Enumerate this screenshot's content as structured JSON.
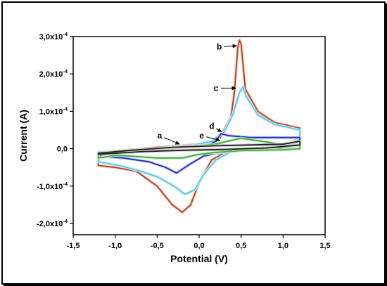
{
  "chart_data": {
    "type": "line",
    "title": "",
    "xlabel": "Potential (V)",
    "ylabel": "Current (A)",
    "xlim": [
      -1.5,
      1.5
    ],
    "ylim": [
      -0.00023,
      0.0003
    ],
    "xticks": [
      {
        "value": -1.5,
        "label": "-1,5"
      },
      {
        "value": -1.0,
        "label": "-1,0"
      },
      {
        "value": -0.5,
        "label": "-0,5"
      },
      {
        "value": 0.0,
        "label": "0,0"
      },
      {
        "value": 0.5,
        "label": "0,5"
      },
      {
        "value": 1.0,
        "label": "1,0"
      },
      {
        "value": 1.5,
        "label": "1,5"
      }
    ],
    "yticks": [
      {
        "value": -0.0002,
        "mantissa": "-2,0x10",
        "exp": "-4"
      },
      {
        "value": -0.0001,
        "mantissa": "-1,0x10",
        "exp": "-4"
      },
      {
        "value": 0.0,
        "mantissa": "0,0",
        "exp": ""
      },
      {
        "value": 0.0001,
        "mantissa": "1,0x10",
        "exp": "-4"
      },
      {
        "value": 0.0002,
        "mantissa": "2,0x10",
        "exp": "-4"
      },
      {
        "value": 0.0003,
        "mantissa": "3,0x10",
        "exp": "-4"
      }
    ],
    "grid": false,
    "series": [
      {
        "color": "#b5452a",
        "glow": "#f2c6b8",
        "points": [
          [
            -1.2,
            -1.5e-05
          ],
          [
            -0.9,
            -5e-06
          ],
          [
            -0.5,
            3.5e-06
          ],
          [
            -0.2,
            8e-06
          ],
          [
            0.1,
            1.5e-05
          ],
          [
            0.25,
            3e-05
          ],
          [
            0.32,
            6e-05
          ],
          [
            0.38,
            8.5e-05
          ],
          [
            0.42,
            0.00015
          ],
          [
            0.46,
            0.00027
          ],
          [
            0.48,
            0.00029
          ],
          [
            0.5,
            0.00028
          ],
          [
            0.55,
            0.00016
          ],
          [
            0.7,
            0.0001
          ],
          [
            0.9,
            7e-05
          ],
          [
            1.1,
            6e-05
          ],
          [
            1.2,
            5.5e-05
          ],
          [
            1.2,
            3e-05
          ],
          [
            1.05,
            1e-05
          ],
          [
            0.7,
            0
          ],
          [
            0.35,
            -5e-06
          ],
          [
            0.15,
            -3e-05
          ],
          [
            0.0,
            -9e-05
          ],
          [
            -0.1,
            -0.00015
          ],
          [
            -0.2,
            -0.00017
          ],
          [
            -0.32,
            -0.00015
          ],
          [
            -0.5,
            -0.0001
          ],
          [
            -0.75,
            -6e-05
          ],
          [
            -1.0,
            -5e-05
          ],
          [
            -1.2,
            -4.5e-05
          ]
        ]
      },
      {
        "color": "#5ec8e6",
        "glow": "#c8edf7",
        "points": [
          [
            -1.2,
            -2.5e-05
          ],
          [
            -0.9,
            -1e-05
          ],
          [
            -0.5,
            0
          ],
          [
            -0.1,
            8e-06
          ],
          [
            0.15,
            2e-05
          ],
          [
            0.3,
            4.5e-05
          ],
          [
            0.4,
            9e-05
          ],
          [
            0.48,
            0.00015
          ],
          [
            0.52,
            0.000165
          ],
          [
            0.56,
            0.00014
          ],
          [
            0.7,
            9e-05
          ],
          [
            0.9,
            6.5e-05
          ],
          [
            1.1,
            5.5e-05
          ],
          [
            1.2,
            5e-05
          ],
          [
            1.2,
            2.5e-05
          ],
          [
            1.0,
            8e-06
          ],
          [
            0.7,
            0
          ],
          [
            0.4,
            -5e-06
          ],
          [
            0.2,
            -3e-05
          ],
          [
            0.05,
            -7e-05
          ],
          [
            -0.05,
            -0.00011
          ],
          [
            -0.17,
            -0.000122
          ],
          [
            -0.3,
            -0.0001
          ],
          [
            -0.5,
            -7.5e-05
          ],
          [
            -0.7,
            -6e-05
          ],
          [
            -0.95,
            -4.5e-05
          ],
          [
            -1.2,
            -3.5e-05
          ]
        ]
      },
      {
        "color": "#1f2fbf",
        "glow": "#c3c8f0",
        "points": [
          [
            -1.2,
            -1.5e-05
          ],
          [
            -0.8,
            -5e-06
          ],
          [
            -0.3,
            5e-06
          ],
          [
            0.1,
            1e-05
          ],
          [
            0.2,
            2e-05
          ],
          [
            0.26,
            4e-05
          ],
          [
            0.35,
            3.5e-05
          ],
          [
            0.6,
            3e-05
          ],
          [
            0.9,
            3e-05
          ],
          [
            1.1,
            3e-05
          ],
          [
            1.2,
            3e-05
          ],
          [
            1.2,
            1e-05
          ],
          [
            0.9,
            0
          ],
          [
            0.5,
            -5e-06
          ],
          [
            0.2,
            -1.2e-05
          ],
          [
            0.05,
            -2e-05
          ],
          [
            -0.1,
            -4e-05
          ],
          [
            -0.27,
            -6.5e-05
          ],
          [
            -0.4,
            -5e-05
          ],
          [
            -0.6,
            -3.5e-05
          ],
          [
            -0.9,
            -2.5e-05
          ],
          [
            -1.2,
            -2e-05
          ]
        ]
      },
      {
        "color": "#3fae3a",
        "glow": "#c7ebc2",
        "points": [
          [
            -1.2,
            -1e-05
          ],
          [
            -0.9,
            -5e-06
          ],
          [
            -0.5,
            0
          ],
          [
            0,
            8e-06
          ],
          [
            0.2,
            1.2e-05
          ],
          [
            0.3,
            1.8e-05
          ],
          [
            0.5,
            2.8e-05
          ],
          [
            0.8,
            1.8e-05
          ],
          [
            1.0,
            1e-05
          ],
          [
            1.2,
            2e-05
          ],
          [
            1.2,
            0
          ],
          [
            1.0,
            -3e-06
          ],
          [
            0.5,
            -5e-06
          ],
          [
            0.2,
            -1e-05
          ],
          [
            0,
            -1.5e-05
          ],
          [
            -0.2,
            -2.5e-05
          ],
          [
            -0.5,
            -2.5e-05
          ],
          [
            -0.8,
            -2e-05
          ],
          [
            -1.0,
            -1.8e-05
          ],
          [
            -1.2,
            -2.5e-05
          ]
        ]
      },
      {
        "color": "#202020",
        "glow": "#cfcfcf",
        "points": [
          [
            -1.2,
            -1.2e-05
          ],
          [
            -0.8,
            -4e-06
          ],
          [
            -0.3,
            4e-06
          ],
          [
            0.2,
            8e-06
          ],
          [
            0.6,
            1e-05
          ],
          [
            1.0,
            1.2e-05
          ],
          [
            1.2,
            2e-05
          ],
          [
            1.2,
            1e-05
          ],
          [
            0.8,
            2e-06
          ],
          [
            0.3,
            -2e-06
          ],
          [
            -0.2,
            -4e-06
          ],
          [
            -0.7,
            -8e-06
          ],
          [
            -1.2,
            -1.5e-05
          ]
        ]
      }
    ],
    "annotations": [
      {
        "text": "a",
        "arrow_to": [
          -0.23,
          1.2e-05
        ],
        "text_at": [
          -0.47,
          3.5e-05
        ]
      },
      {
        "text": "b",
        "arrow_to": [
          0.45,
          0.000275
        ],
        "text_at": [
          0.24,
          0.000273
        ]
      },
      {
        "text": "c",
        "arrow_to": [
          0.44,
          0.000162
        ],
        "text_at": [
          0.2,
          0.000162
        ]
      },
      {
        "text": "d",
        "arrow_to": [
          0.27,
          4.5e-05
        ],
        "text_at": [
          0.15,
          6e-05
        ]
      },
      {
        "text": "e",
        "arrow_to": [
          0.25,
          2.2e-05
        ],
        "text_at": [
          0.03,
          3.5e-05
        ]
      }
    ]
  }
}
